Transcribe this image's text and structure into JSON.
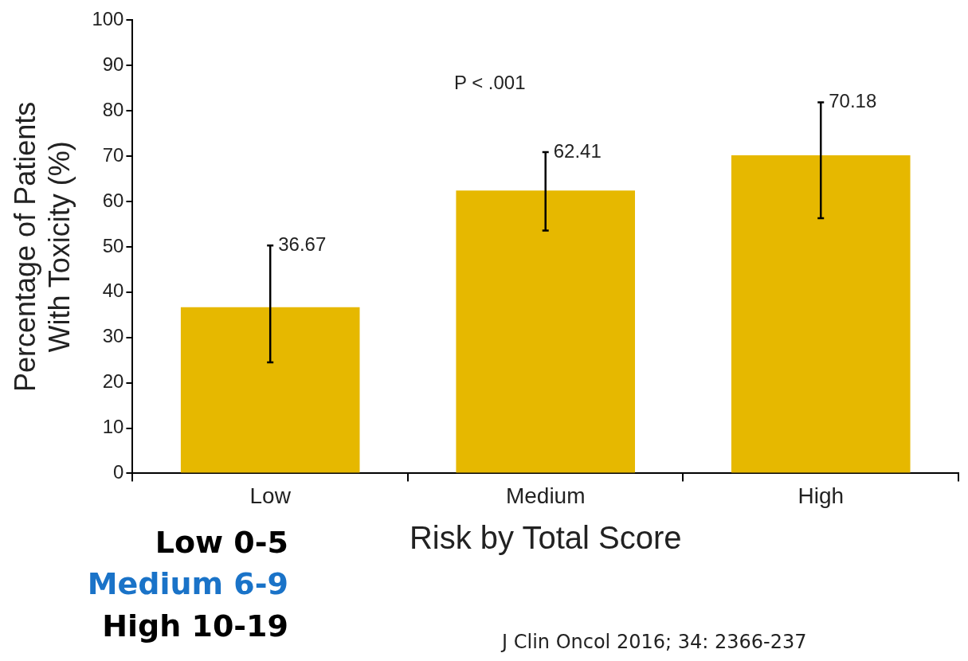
{
  "chart_data": {
    "type": "bar",
    "ylabel": "Percentage of Patients\nWith Toxicity (%)",
    "xlabel": "Risk by Total Score",
    "categories": [
      "Low",
      "Medium",
      "High"
    ],
    "values": [
      36.67,
      62.41,
      70.18
    ],
    "color": "#e6b800",
    "errors": [
      [
        24.5,
        50.3
      ],
      [
        53.6,
        70.9
      ],
      [
        56.3,
        81.9
      ]
    ],
    "data_labels": true,
    "ylim": [
      0,
      100
    ],
    "yticks": [
      0,
      10,
      20,
      30,
      40,
      50,
      60,
      70,
      80,
      90,
      100
    ],
    "grid": false,
    "legend": false,
    "annotations": [
      "P < .001",
      "Low 0-5",
      "Medium 6-9",
      "High 10-19",
      "J Clin Oncol 2016; 34: 2366-237"
    ]
  }
}
